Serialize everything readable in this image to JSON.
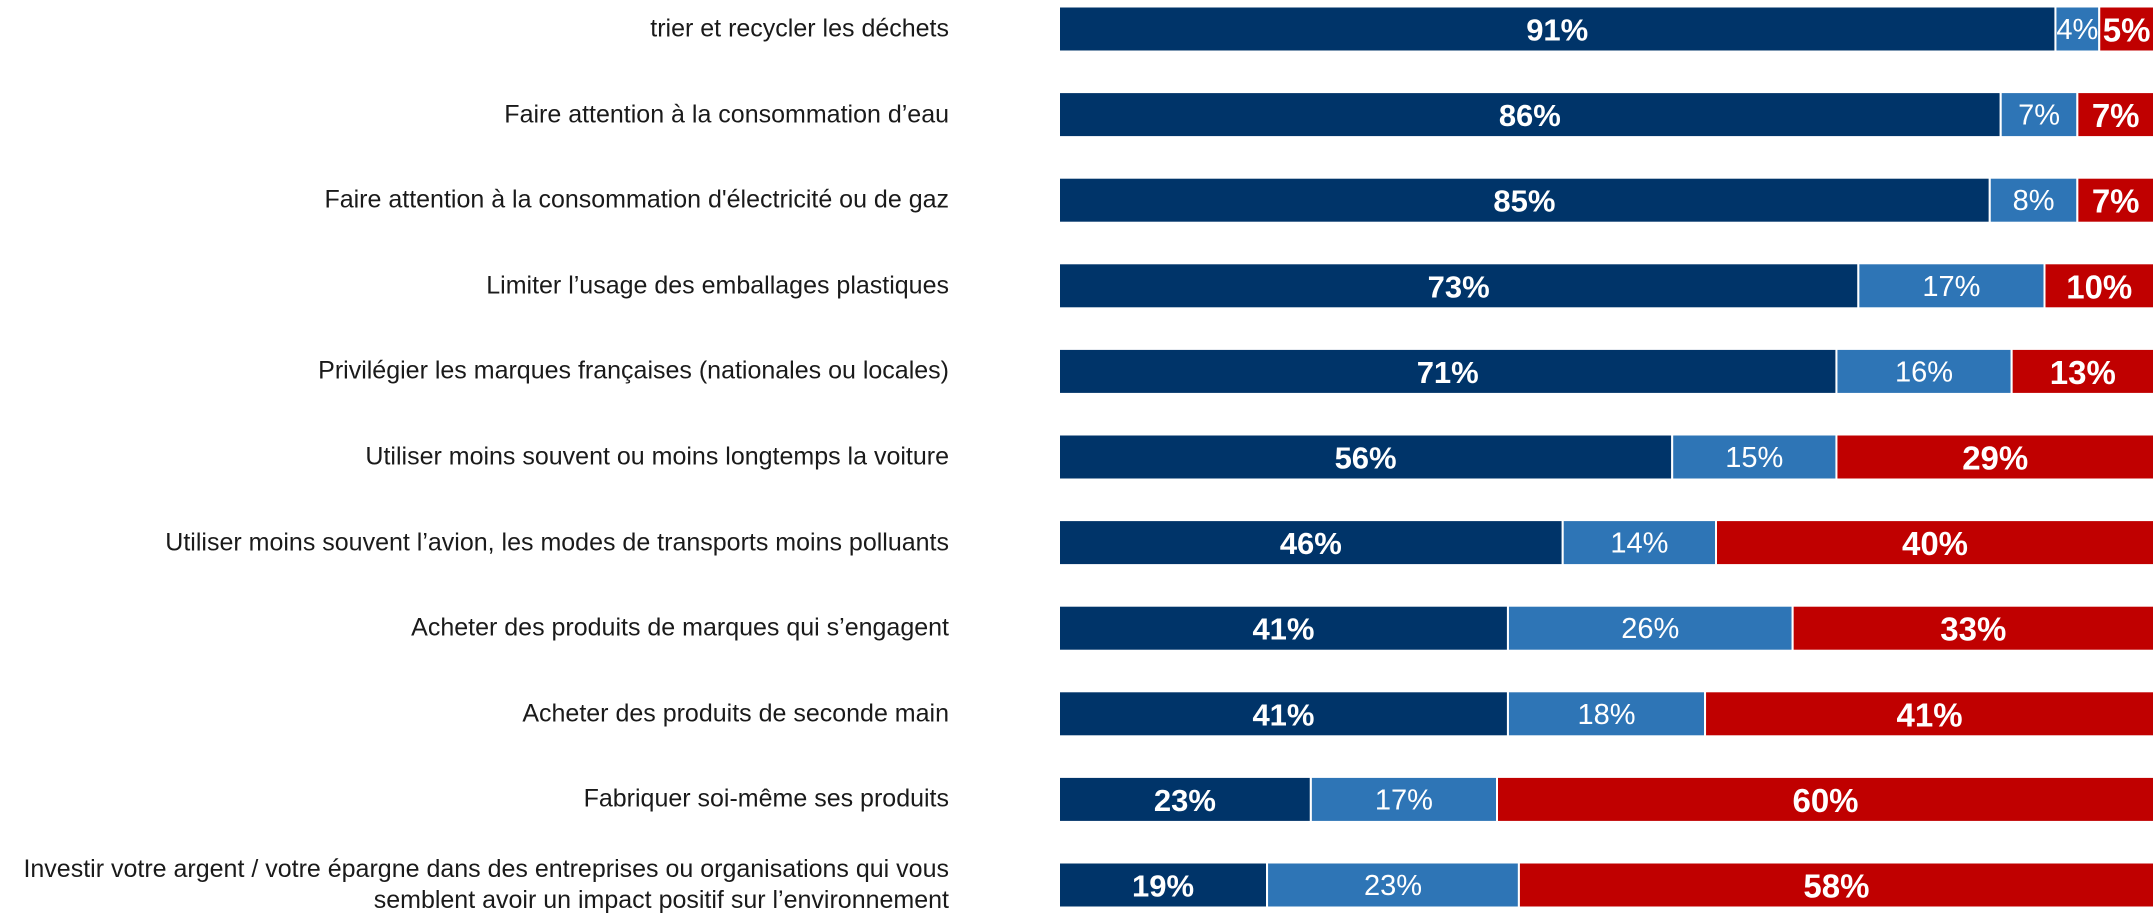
{
  "chart_data": {
    "type": "stacked-barh",
    "categories": [
      "trier et recycler les déchets",
      "Faire attention à la consommation d’eau",
      "Faire attention à la consommation d'électricité ou de gaz",
      "Limiter l’usage des emballages plastiques",
      "Privilégier les marques françaises (nationales ou locales)",
      "Utiliser moins souvent ou moins longtemps la voiture",
      "Utiliser moins souvent l’avion, les modes de transports moins polluants",
      "Acheter des produits de marques qui s’engagent",
      "Acheter des produits de seconde main",
      "Fabriquer soi-même ses produits",
      "Investir votre argent / votre épargne dans des entreprises ou organisations qui vous semblent avoir un impact positif sur l’environnement"
    ],
    "series": [
      {
        "color": "#003469",
        "values": [
          91,
          86,
          85,
          73,
          71,
          56,
          46,
          41,
          41,
          23,
          19
        ],
        "value_labels": [
          "91%",
          "86%",
          "85%",
          "73%",
          "71%",
          "56%",
          "46%",
          "41%",
          "41%",
          "23%",
          "19%"
        ]
      },
      {
        "color": "#2e75b6",
        "values": [
          4,
          7,
          8,
          17,
          16,
          15,
          14,
          26,
          18,
          17,
          23
        ],
        "value_labels": [
          "4%",
          "7%",
          "8%",
          "17%",
          "16%",
          "15%",
          "14%",
          "26%",
          "18%",
          "17%",
          "23%"
        ]
      },
      {
        "color": "#c00000",
        "values": [
          5,
          7,
          7,
          10,
          13,
          29,
          40,
          33,
          41,
          60,
          58
        ],
        "value_labels": [
          "5%",
          "7%",
          "7%",
          "10%",
          "13%",
          "29%",
          "40%",
          "33%",
          "41%",
          "60%",
          "58%"
        ]
      }
    ],
    "xlim": [
      0,
      100
    ]
  }
}
